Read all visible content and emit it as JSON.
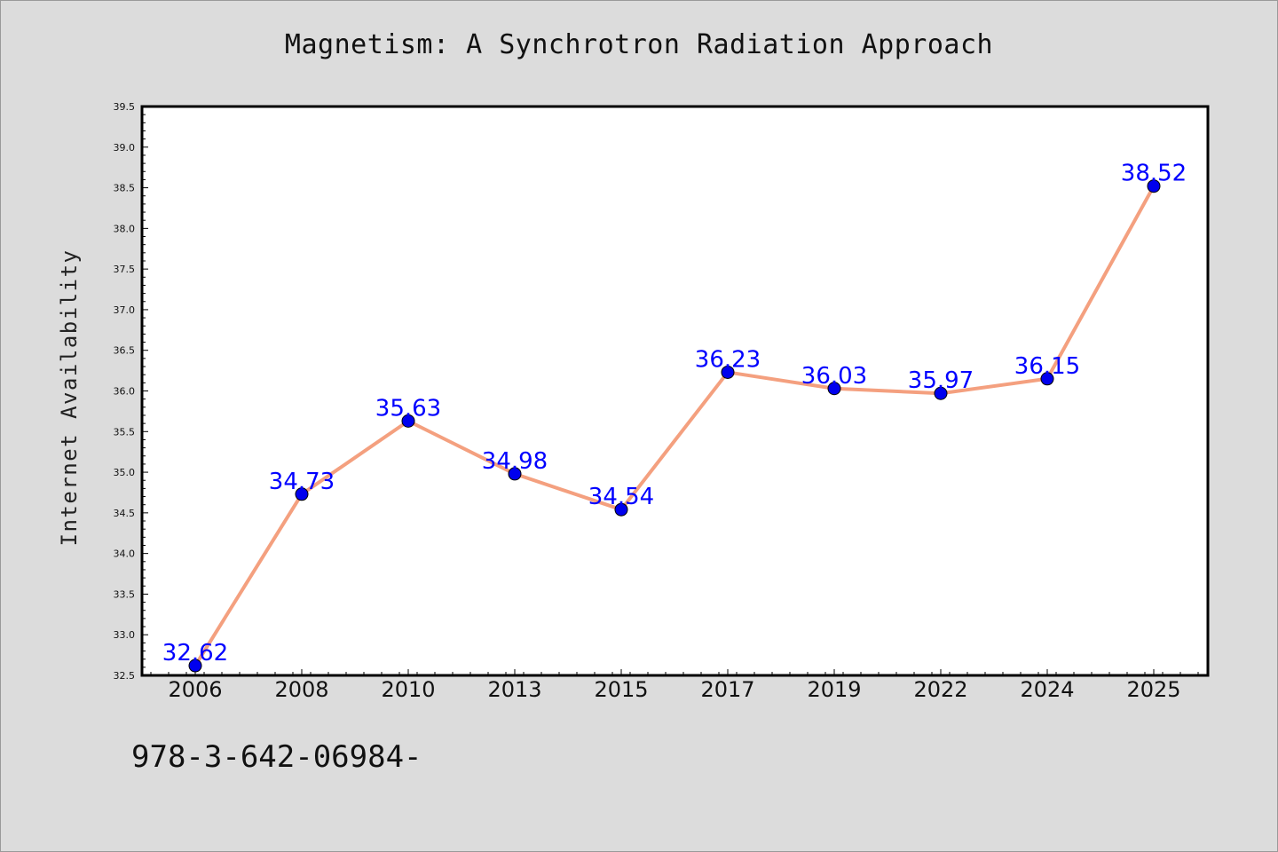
{
  "chart_data": {
    "type": "line",
    "title": "Magnetism: A Synchrotron Radiation Approach",
    "xlabel": "",
    "ylabel": "Internet Availability",
    "categories": [
      "2006",
      "2008",
      "2010",
      "2013",
      "2015",
      "2017",
      "2019",
      "2022",
      "2024",
      "2025"
    ],
    "series": [
      {
        "values": [
          32.62,
          34.73,
          35.63,
          34.98,
          34.54,
          36.23,
          36.03,
          35.97,
          36.15,
          38.52
        ],
        "color": "#f4a07f",
        "marker_color": "#0000ee"
      }
    ],
    "data_labels": [
      "32.62",
      "34.73",
      "35.63",
      "34.98",
      "34.54",
      "36.23",
      "36.03",
      "35.97",
      "36.15",
      "38.52"
    ],
    "ylim": [
      32.5,
      39.5
    ],
    "yticks": [
      "32.5",
      "33.0",
      "33.5",
      "34.0",
      "34.5",
      "35.0",
      "35.5",
      "36.0",
      "36.5",
      "37.0",
      "37.5",
      "38.0",
      "38.5",
      "39.0",
      "39.5"
    ],
    "grid": false,
    "label_color": "#0000ff"
  },
  "footer_note": "978-3-642-06984-"
}
